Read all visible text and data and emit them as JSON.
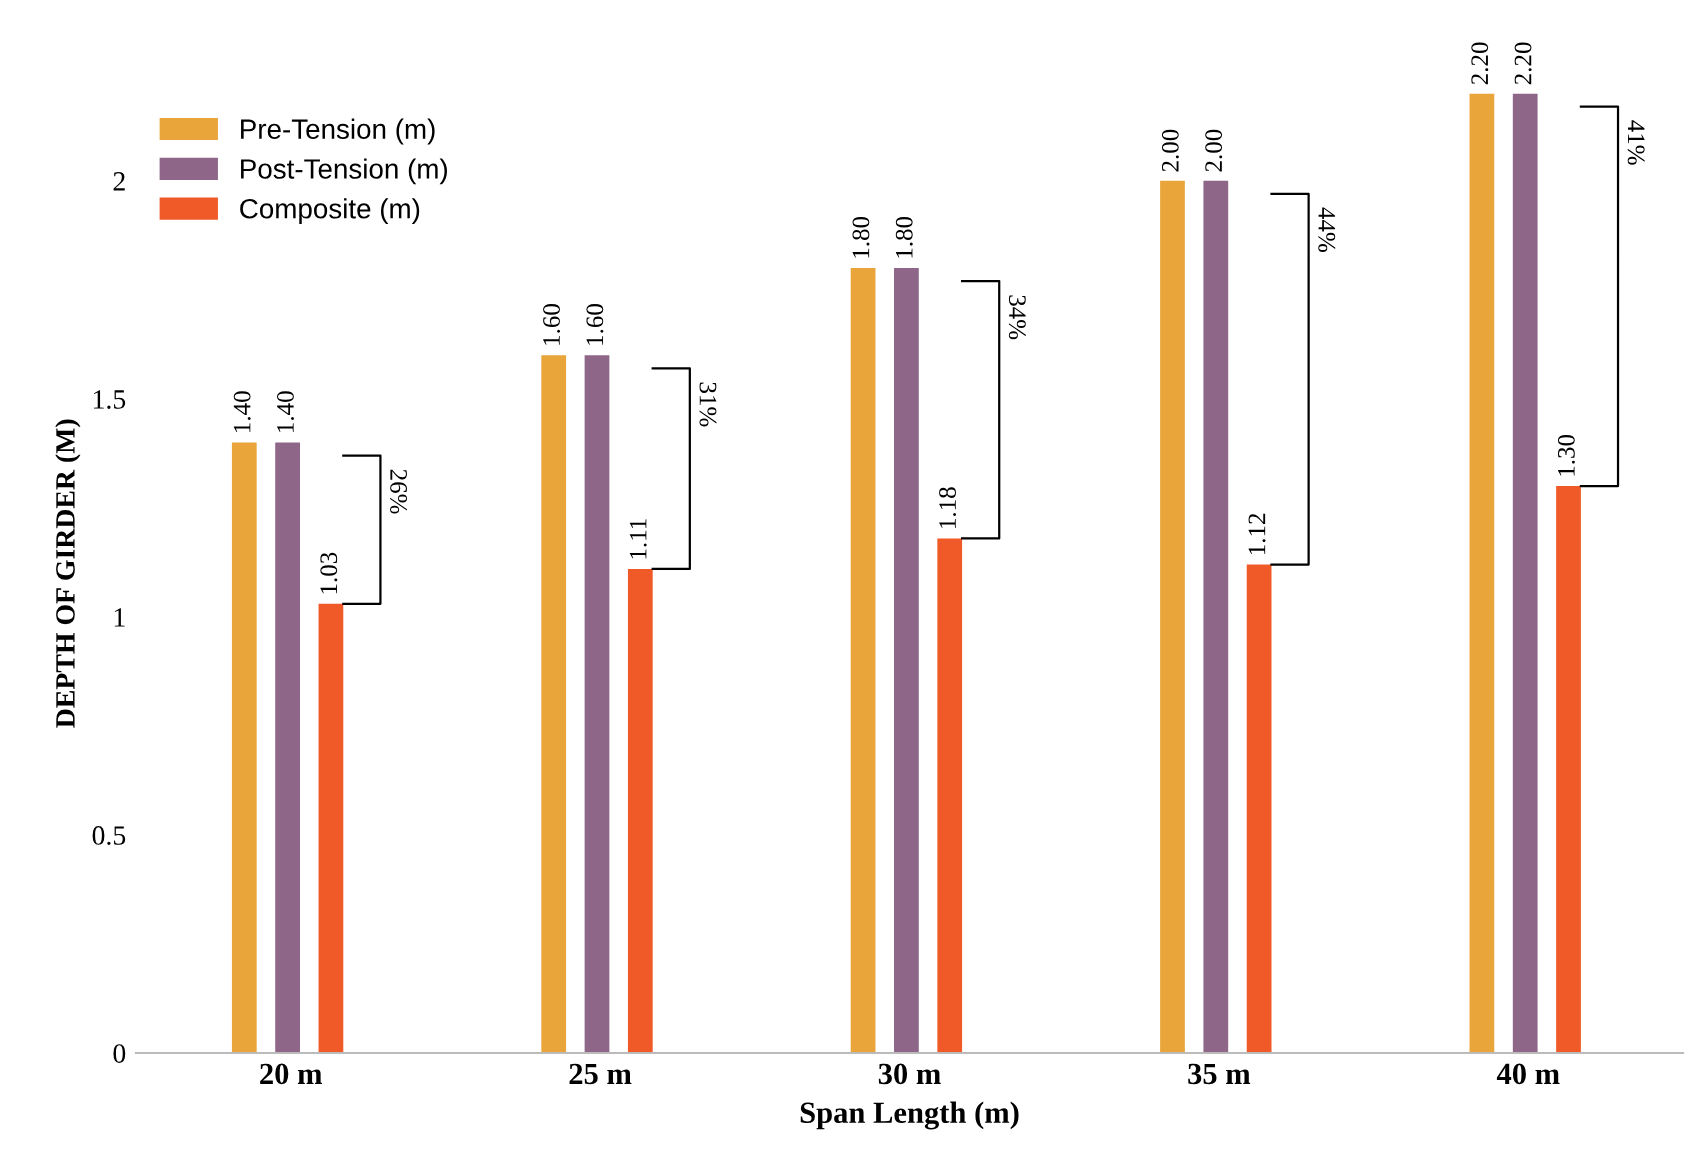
{
  "chart_data": {
    "type": "bar",
    "categories": [
      "20 m",
      "25 m",
      "30 m",
      "35 m",
      "40 m"
    ],
    "series": [
      {
        "name": "Pre-Tension (m)",
        "color": "#e9a53a",
        "values": [
          1.4,
          1.6,
          1.8,
          2.0,
          2.2
        ],
        "value_labels": [
          "1.40",
          "1.60",
          "1.80",
          "2.00",
          "2.20"
        ]
      },
      {
        "name": "Post-Tension (m)",
        "color": "#8e6688",
        "values": [
          1.4,
          1.6,
          1.8,
          2.0,
          2.2
        ],
        "value_labels": [
          "1.40",
          "1.60",
          "1.80",
          "2.00",
          "2.20"
        ]
      },
      {
        "name": "Composite (m)",
        "color": "#f05a28",
        "values": [
          1.03,
          1.11,
          1.18,
          1.12,
          1.3
        ],
        "value_labels": [
          "1.03",
          "1.11",
          "1.18",
          "1.12",
          "1.30"
        ]
      }
    ],
    "xlabel": "Span Length (m)",
    "ylabel": "DEPTH OF GIRDER (M)",
    "ylim": [
      0,
      2.2
    ],
    "yticks": [
      0,
      0.5,
      1,
      1.5,
      2
    ],
    "annotations": [
      "26%",
      "31%",
      "34%",
      "44%",
      "41%"
    ],
    "grid": false,
    "legend": "top left"
  }
}
